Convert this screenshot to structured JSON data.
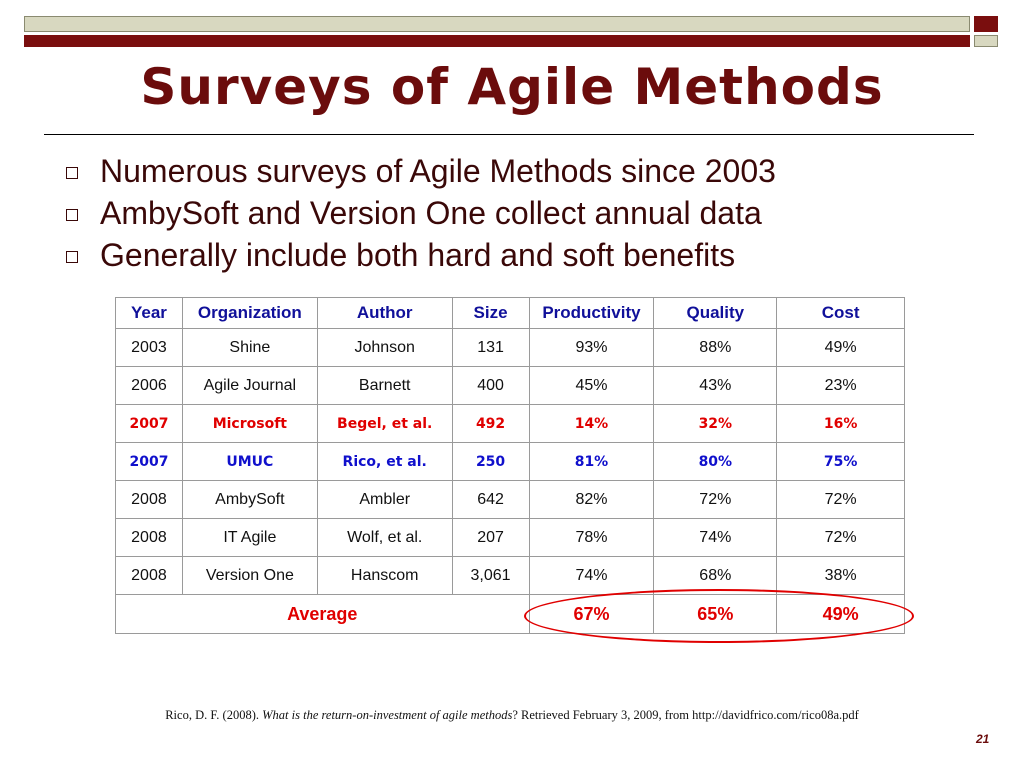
{
  "slide": {
    "title": "Surveys of Agile Methods",
    "bullets": [
      "Numerous surveys of Agile Methods since 2003",
      "AmbySoft and Version One collect annual data",
      "Generally include both hard and soft benefits"
    ],
    "page_number": "21"
  },
  "table": {
    "headers": [
      "Year",
      "Organization",
      "Author",
      "Size",
      "Productivity",
      "Quality",
      "Cost"
    ],
    "rows": [
      [
        "2003",
        "Shine",
        "Johnson",
        "131",
        "93%",
        "88%",
        "49%"
      ],
      [
        "2006",
        "Agile Journal",
        "Barnett",
        "400",
        "45%",
        "43%",
        "23%"
      ],
      [
        "2007",
        "Microsoft",
        "Begel, et al.",
        "492",
        "14%",
        "32%",
        "16%"
      ],
      [
        "2007",
        "UMUC",
        "Rico, et al.",
        "250",
        "81%",
        "80%",
        "75%"
      ],
      [
        "2008",
        "AmbySoft",
        "Ambler",
        "642",
        "82%",
        "72%",
        "72%"
      ],
      [
        "2008",
        "IT Agile",
        "Wolf, et al.",
        "207",
        "78%",
        "74%",
        "72%"
      ],
      [
        "2008",
        "Version One",
        "Hanscom",
        "3,061",
        "74%",
        "68%",
        "38%"
      ]
    ],
    "average": {
      "label": "Average",
      "productivity": "67%",
      "quality": "65%",
      "cost": "49%"
    }
  },
  "citation": {
    "prefix": "Rico, D. F. (2008). ",
    "italic": "What is the return-on-investment of agile methods",
    "suffix": "? Retrieved February 3, 2009, from http://davidfrico.com/rico08a.pdf"
  },
  "colors": {
    "title": "#6b0c0c",
    "header_text": "#10109a",
    "highlight_red": "#e00000",
    "highlight_blue": "#1010cc"
  }
}
